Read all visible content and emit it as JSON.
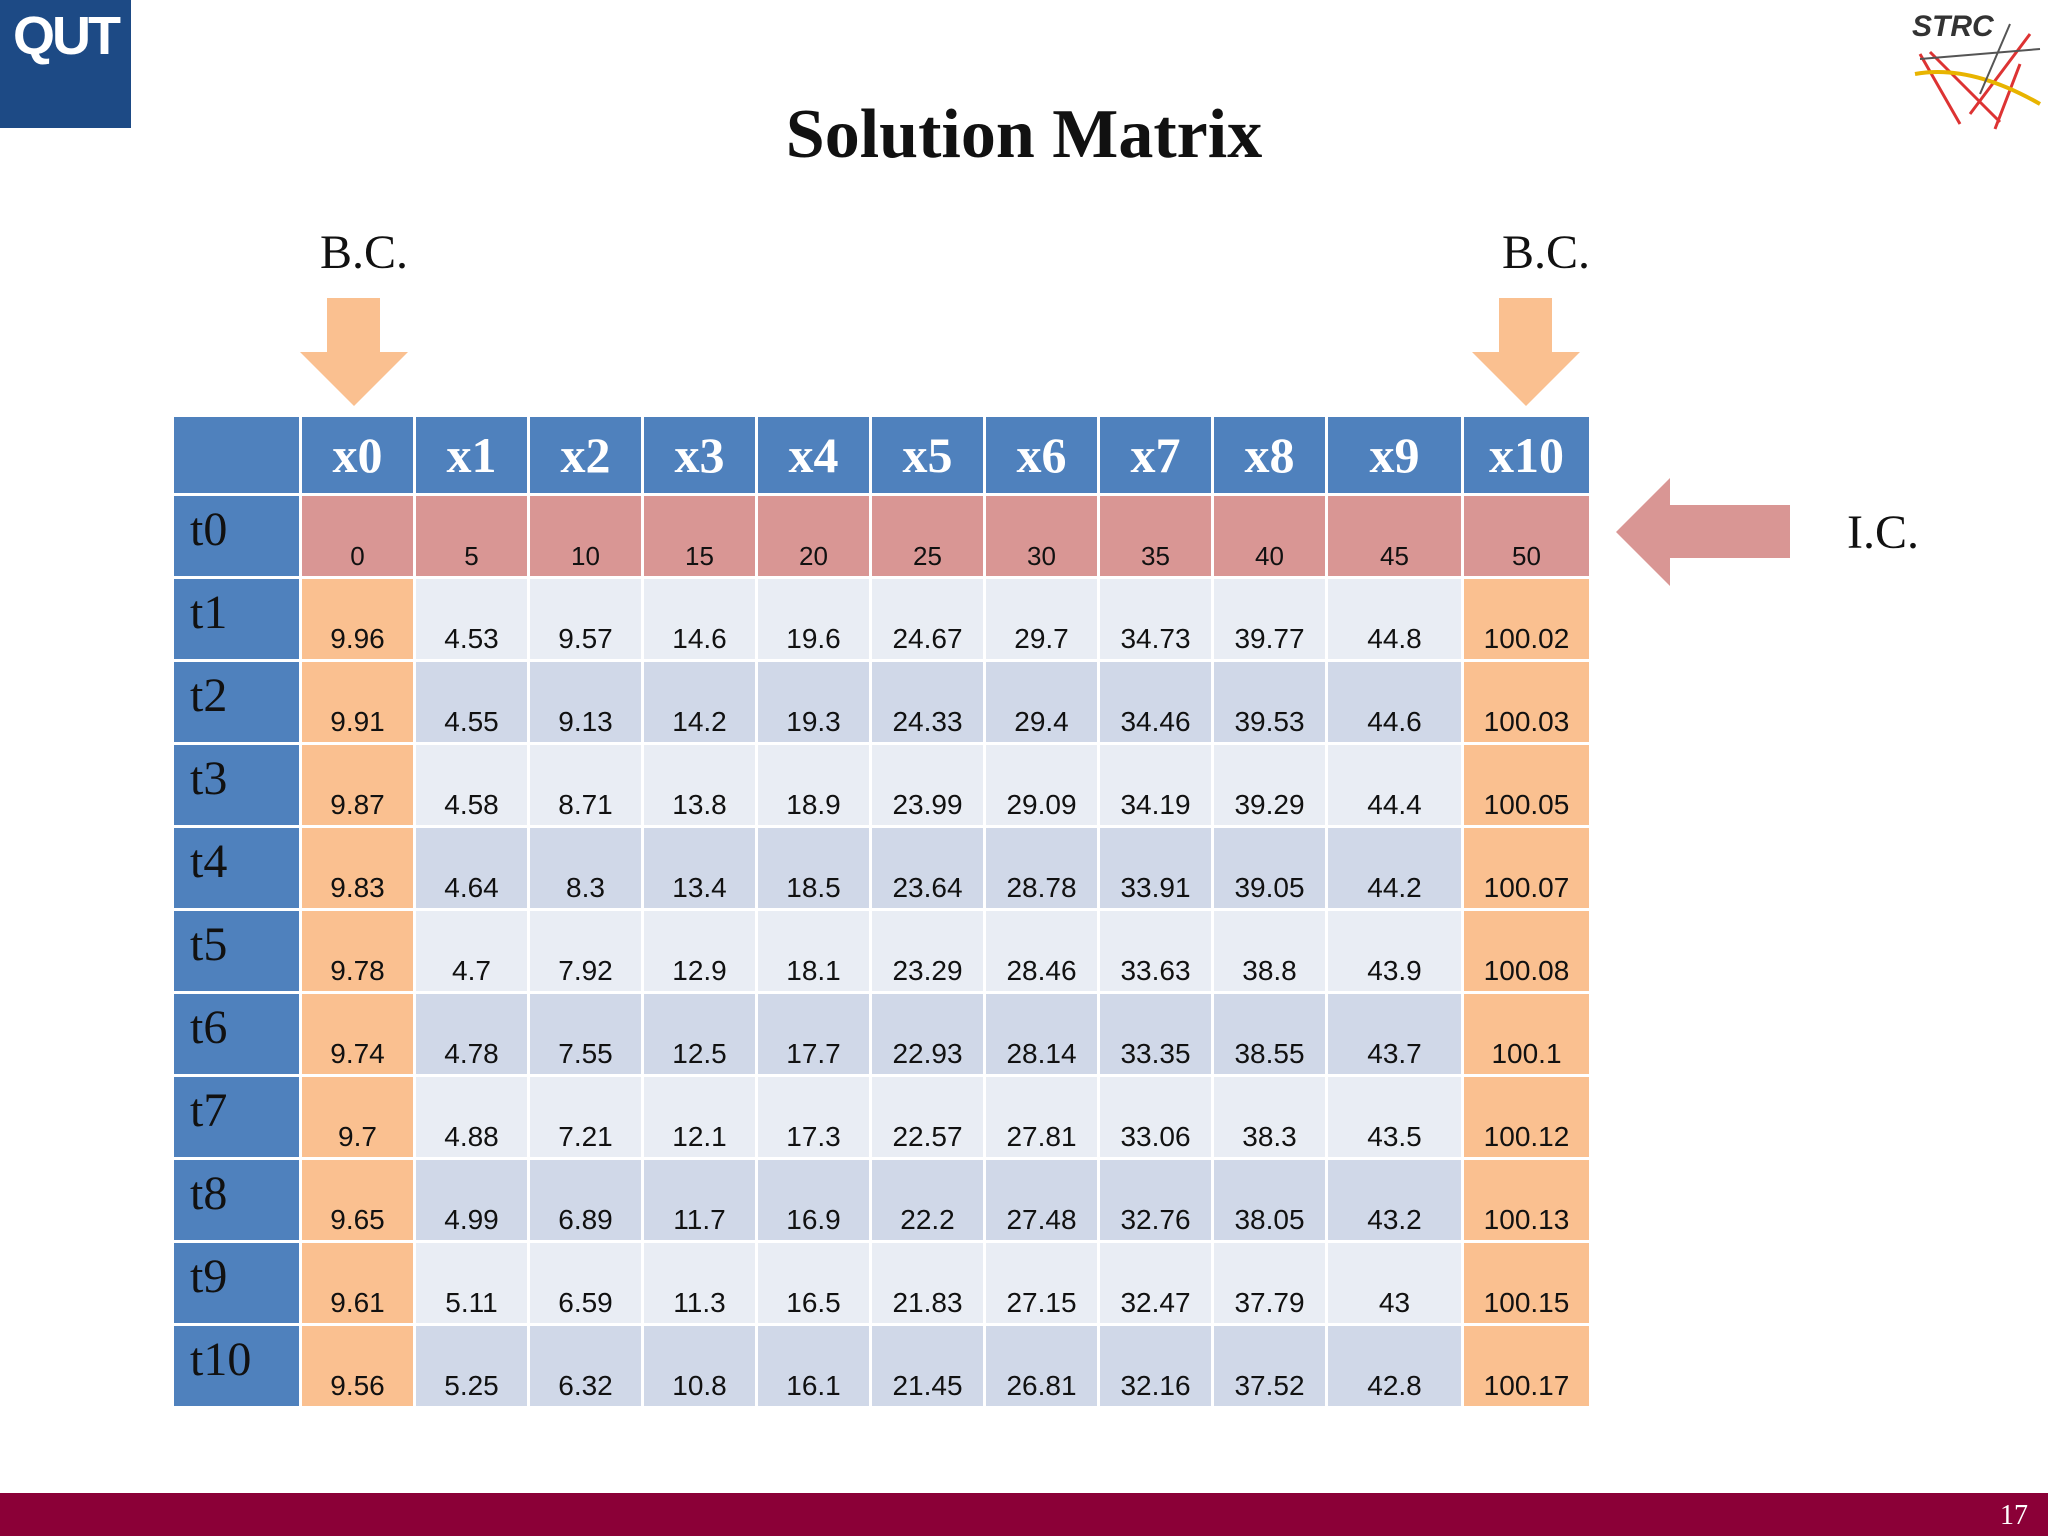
{
  "header": {
    "logo_left": "QUT",
    "logo_right": "STRC",
    "title": "Solution Matrix"
  },
  "annotations": {
    "bc_left": "B.C.",
    "bc_right": "B.C.",
    "ic": "I.C."
  },
  "table": {
    "columns": [
      "x0",
      "x1",
      "x2",
      "x3",
      "x4",
      "x5",
      "x6",
      "x7",
      "x8",
      "x9",
      "x10"
    ],
    "rows": [
      {
        "label": "t0",
        "values": [
          0,
          5,
          10,
          15,
          20,
          25,
          30,
          35,
          40,
          45,
          50
        ]
      },
      {
        "label": "t1",
        "values": [
          9.96,
          4.53,
          9.57,
          14.6,
          19.6,
          24.67,
          29.7,
          34.73,
          39.77,
          44.8,
          100.02
        ]
      },
      {
        "label": "t2",
        "values": [
          9.91,
          4.55,
          9.13,
          14.2,
          19.3,
          24.33,
          29.4,
          34.46,
          39.53,
          44.6,
          100.03
        ]
      },
      {
        "label": "t3",
        "values": [
          9.87,
          4.58,
          8.71,
          13.8,
          18.9,
          23.99,
          29.09,
          34.19,
          39.29,
          44.4,
          100.05
        ]
      },
      {
        "label": "t4",
        "values": [
          9.83,
          4.64,
          8.3,
          13.4,
          18.5,
          23.64,
          28.78,
          33.91,
          39.05,
          44.2,
          100.07
        ]
      },
      {
        "label": "t5",
        "values": [
          9.78,
          4.7,
          7.92,
          12.9,
          18.1,
          23.29,
          28.46,
          33.63,
          38.8,
          43.9,
          100.08
        ]
      },
      {
        "label": "t6",
        "values": [
          9.74,
          4.78,
          7.55,
          12.5,
          17.7,
          22.93,
          28.14,
          33.35,
          38.55,
          43.7,
          100.1
        ]
      },
      {
        "label": "t7",
        "values": [
          9.7,
          4.88,
          7.21,
          12.1,
          17.3,
          22.57,
          27.81,
          33.06,
          38.3,
          43.5,
          100.12
        ]
      },
      {
        "label": "t8",
        "values": [
          9.65,
          4.99,
          6.89,
          11.7,
          16.9,
          22.2,
          27.48,
          32.76,
          38.05,
          43.2,
          100.13
        ]
      },
      {
        "label": "t9",
        "values": [
          9.61,
          5.11,
          6.59,
          11.3,
          16.5,
          21.83,
          27.15,
          32.47,
          37.79,
          43,
          100.15
        ]
      },
      {
        "label": "t10",
        "values": [
          9.56,
          5.25,
          6.32,
          10.8,
          16.1,
          21.45,
          26.81,
          32.16,
          37.52,
          42.8,
          100.17
        ]
      }
    ]
  },
  "footer": {
    "page_number": "17"
  }
}
